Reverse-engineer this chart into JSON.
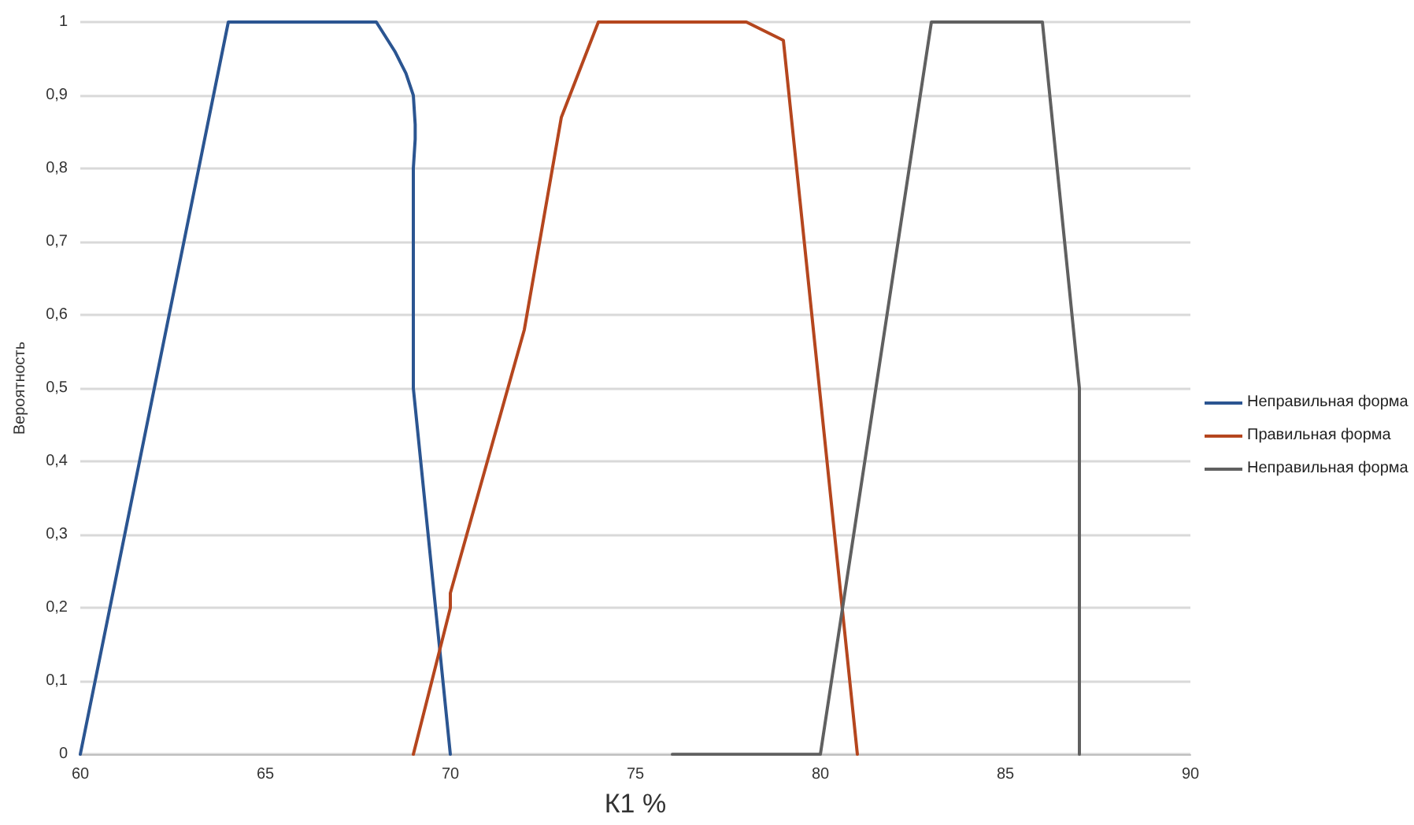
{
  "chart_data": {
    "type": "line",
    "xlabel": "К1 %",
    "ylabel": "Вероятность",
    "xlim": [
      60,
      90
    ],
    "xticks": [
      60,
      65,
      70,
      75,
      80,
      85,
      90
    ],
    "ylim": [
      0,
      1
    ],
    "yticks": [
      0,
      {
        "value": 0.1,
        "label": "0,1"
      },
      {
        "value": 0.2,
        "label": "0,2"
      },
      {
        "value": 0.3,
        "label": "0,3"
      },
      {
        "value": 0.4,
        "label": "0,4"
      },
      {
        "value": 0.5,
        "label": "0,5"
      },
      {
        "value": 0.6,
        "label": "0,6"
      },
      {
        "value": 0.7,
        "label": "0,7"
      },
      {
        "value": 0.8,
        "label": "0,8"
      },
      {
        "value": 0.9,
        "label": "0,9"
      },
      1
    ],
    "grid": "y",
    "legend": "right",
    "marker": "none",
    "line_style": "solid",
    "series": [
      {
        "name": "Неправильная форма",
        "color": "#2b5591",
        "x": [
          60,
          64,
          68,
          68.5,
          68.8,
          69.0,
          69.05,
          69.05,
          69.0,
          69.0,
          69.0,
          70
        ],
        "values": [
          0,
          1,
          1,
          0.96,
          0.93,
          0.9,
          0.86,
          0.84,
          0.8,
          0.7,
          0.5,
          0
        ]
      },
      {
        "name": "Правильная форма",
        "color": "#b5461e",
        "x": [
          69,
          70,
          70,
          72,
          73,
          74,
          78,
          79,
          81
        ],
        "values": [
          0,
          0.2,
          0.22,
          0.58,
          0.87,
          1,
          1,
          0.975,
          0
        ]
      },
      {
        "name": "Неправильная форма",
        "color": "#606060",
        "x": [
          76,
          80,
          83,
          86,
          87,
          87
        ],
        "values": [
          0,
          0,
          1,
          1,
          0.5,
          0
        ]
      }
    ]
  }
}
